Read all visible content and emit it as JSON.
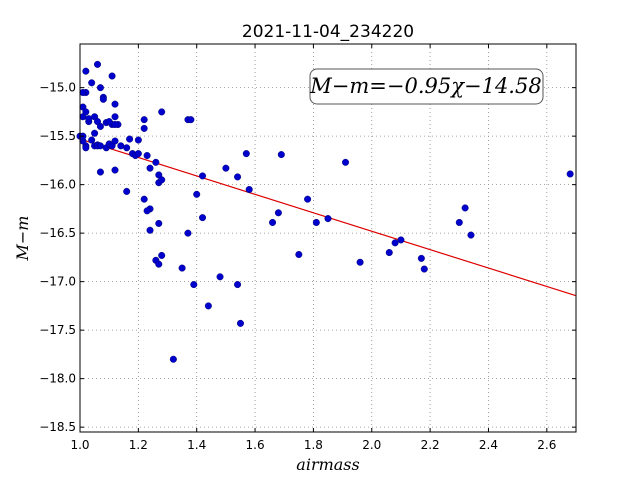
{
  "chart_data": {
    "type": "scatter",
    "title": "2021-11-04_234220",
    "xlabel": "airmass",
    "ylabel": "M−m",
    "xlim": [
      1.0,
      2.7
    ],
    "ylim": [
      -18.55,
      -14.55
    ],
    "y_inverted": true,
    "grid": true,
    "x_ticks": [
      1.0,
      1.2,
      1.4,
      1.6,
      1.8,
      2.0,
      2.2,
      2.4,
      2.6
    ],
    "x_tick_labels": [
      "1.0",
      "1.2",
      "1.4",
      "1.6",
      "1.8",
      "2.0",
      "2.2",
      "2.4",
      "2.6"
    ],
    "y_ticks": [
      -15.0,
      -15.5,
      -16.0,
      -16.5,
      -17.0,
      -17.5,
      -18.0,
      -18.5
    ],
    "y_tick_labels": [
      "−15.0",
      "−15.5",
      "−16.0",
      "−16.5",
      "−17.0",
      "−17.5",
      "−18.0",
      "−18.5"
    ],
    "annotation": "M−m=−0.95χ−14.58",
    "colors": {
      "points": "#0000cc",
      "fit_line": "#dd0000"
    },
    "series": [
      {
        "marker": "circle",
        "x": [
          1.0,
          1.01,
          1.01,
          1.02,
          1.02,
          1.01,
          1.02,
          1.03,
          1.01,
          1.02,
          1.03,
          1.04,
          1.05,
          1.05,
          1.06,
          1.06,
          1.07,
          1.07,
          1.08,
          1.08,
          1.09,
          1.11,
          1.12,
          1.11,
          1.12,
          1.13,
          1.1,
          1.12,
          1.05,
          1.06,
          1.07,
          1.06,
          1.07,
          1.09,
          1.1,
          1.11,
          1.01,
          1.02,
          1.04,
          1.12,
          1.14,
          1.16,
          1.17,
          1.18,
          1.19,
          1.2,
          1.22,
          1.22,
          1.23,
          1.24,
          1.24,
          1.26,
          1.27,
          1.27,
          1.27,
          1.28,
          1.12,
          1.2,
          1.22,
          1.23,
          1.24,
          1.26,
          1.27,
          1.28,
          1.28,
          1.32,
          1.35,
          1.37,
          1.37,
          1.38,
          1.39,
          1.4,
          1.42,
          1.42,
          1.44,
          1.48,
          1.5,
          1.54,
          1.55,
          1.54,
          1.57,
          1.58,
          1.66,
          1.68,
          1.69,
          1.75,
          1.78,
          1.81,
          1.85,
          1.91,
          1.96,
          2.06,
          2.08,
          2.1,
          2.17,
          2.18,
          2.3,
          2.32,
          2.34,
          2.68,
          1.16
        ],
        "y": [
          -15.5,
          -15.2,
          -15.3,
          -15.6,
          -15.05,
          -15.05,
          -15.25,
          -15.35,
          -15.55,
          -14.83,
          -15.32,
          -14.95,
          -15.3,
          -15.47,
          -14.76,
          -15.35,
          -15.4,
          -15.0,
          -15.1,
          -15.12,
          -15.36,
          -15.38,
          -15.3,
          -14.88,
          -15.17,
          -15.38,
          -15.35,
          -15.38,
          -15.6,
          -15.59,
          -15.87,
          -15.6,
          -15.6,
          -15.62,
          -15.58,
          -15.6,
          -15.5,
          -15.62,
          -15.54,
          -15.55,
          -15.6,
          -15.62,
          -15.53,
          -15.68,
          -15.7,
          -15.54,
          -15.33,
          -15.42,
          -15.7,
          -15.83,
          -16.25,
          -15.77,
          -15.9,
          -15.98,
          -16.4,
          -15.25,
          -15.85,
          -15.68,
          -16.15,
          -16.27,
          -16.47,
          -16.78,
          -16.82,
          -16.73,
          -15.95,
          -17.8,
          -16.86,
          -15.33,
          -16.5,
          -15.33,
          -17.03,
          -16.1,
          -15.91,
          -16.34,
          -17.25,
          -16.95,
          -15.83,
          -15.92,
          -17.43,
          -17.03,
          -15.68,
          -16.05,
          -16.39,
          -16.29,
          -15.69,
          -16.72,
          -16.15,
          -16.39,
          -16.35,
          -15.77,
          -16.8,
          -16.7,
          -16.6,
          -16.57,
          -16.76,
          -16.87,
          -16.39,
          -16.24,
          -16.52,
          -15.89,
          -16.07
        ]
      }
    ],
    "fit": {
      "slope": -0.95,
      "intercept": -14.58,
      "x_range": [
        1.0,
        2.7
      ]
    }
  }
}
